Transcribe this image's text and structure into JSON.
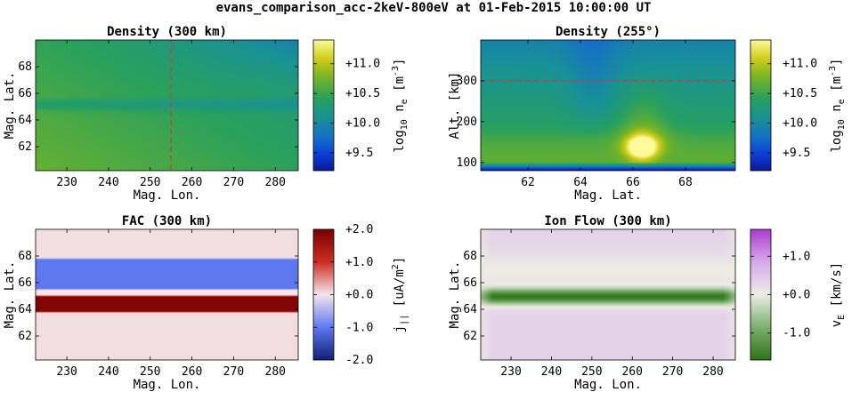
{
  "figure": {
    "title": "evans_comparison_acc-2keV-800eV at 01-Feb-2015 10:00:00 UT"
  },
  "chart_data": [
    {
      "type": "heatmap",
      "title": "Density (300 km)",
      "xlabel": "Mag. Lon.",
      "ylabel": "Mag. Lat.",
      "xlim": [
        222.5,
        285.5
      ],
      "ylim": [
        60.2,
        70.0
      ],
      "xticks": [
        230,
        240,
        250,
        260,
        270,
        280
      ],
      "xtick_labels": [
        "230",
        "240",
        "250",
        "260",
        "270",
        "280"
      ],
      "yticks": [
        62,
        64,
        66,
        68
      ],
      "ytick_labels": [
        "62",
        "64",
        "66",
        "68"
      ],
      "reference_line": {
        "orientation": "vertical",
        "value": 255,
        "color": "#e0322d",
        "style": "dashed"
      },
      "colormap": "parula",
      "colorbar": {
        "label": "log10 n_e [m^-3]",
        "range": [
          9.2,
          11.4
        ],
        "ticks": [
          9.5,
          10.0,
          10.5,
          11.0
        ],
        "tick_labels": [
          "+9.5",
          "+10.0",
          "+10.5",
          "+11.0"
        ]
      },
      "field_notes": "Green field ~10.3-10.6 increasing toward south-west, low band ~10.1 at lat 64.9-65.4, darker teal near top-right ~10.0"
    },
    {
      "type": "heatmap",
      "title": "Density (255°)",
      "xlabel": "Mag. Lat.",
      "ylabel": "Alt. [km]",
      "xlim": [
        60.2,
        69.9
      ],
      "ylim": [
        80,
        400
      ],
      "xticks": [
        62,
        64,
        66,
        68
      ],
      "xtick_labels": [
        "62",
        "64",
        "66",
        "68"
      ],
      "yticks": [
        100,
        200,
        300
      ],
      "ytick_labels": [
        "100",
        "200",
        "300"
      ],
      "reference_line": {
        "orientation": "horizontal",
        "value": 300,
        "color": "#e0322d",
        "style": "dashed"
      },
      "colormap": "parula",
      "colorbar": {
        "label": "log10 n_e [m^-3]",
        "range": [
          9.2,
          11.4
        ],
        "ticks": [
          9.5,
          10.0,
          10.5,
          11.0
        ],
        "tick_labels": [
          "+9.5",
          "+10.0",
          "+10.5",
          "+11.0"
        ]
      },
      "field_notes": "Peak ~11.4 near lat 66.2 alt 130 km; enhancement column lat 65.5-67.5; dark blue below ~95 km; ~10.0 above 300 km"
    },
    {
      "type": "heatmap",
      "title": "FAC (300 km)",
      "xlabel": "Mag. Lon.",
      "ylabel": "Mag. Lat.",
      "xlim": [
        222.5,
        285.5
      ],
      "ylim": [
        60.2,
        70.0
      ],
      "xticks": [
        230,
        240,
        250,
        260,
        270,
        280
      ],
      "xtick_labels": [
        "230",
        "240",
        "250",
        "260",
        "270",
        "280"
      ],
      "yticks": [
        62,
        64,
        66,
        68
      ],
      "ytick_labels": [
        "62",
        "64",
        "66",
        "68"
      ],
      "colormap": "diverging-blue-white-red",
      "colorbar": {
        "label": "j|| [uA/m^2]",
        "range": [
          -2.0,
          2.0
        ],
        "ticks": [
          -2.0,
          -1.0,
          0.0,
          1.0,
          2.0
        ],
        "tick_labels": [
          "-2.0",
          "-1.0",
          "+0.0",
          "+1.0",
          "+2.0"
        ]
      },
      "bands": [
        {
          "lat_range": [
            60.2,
            63.8
          ],
          "value": 0.05
        },
        {
          "lat_range": [
            63.8,
            65.0
          ],
          "value": 1.9
        },
        {
          "lat_range": [
            65.0,
            65.5
          ],
          "value": 0.0
        },
        {
          "lat_range": [
            65.5,
            67.8
          ],
          "value": -1.0
        },
        {
          "lat_range": [
            67.8,
            70.0
          ],
          "value": 0.05
        }
      ]
    },
    {
      "type": "heatmap",
      "title": "Ion Flow (300 km)",
      "xlabel": "Mag. Lon.",
      "ylabel": "Mag. Lat.",
      "xlim": [
        222.5,
        285.5
      ],
      "ylim": [
        60.2,
        70.0
      ],
      "xticks": [
        230,
        240,
        250,
        260,
        270,
        280
      ],
      "xtick_labels": [
        "230",
        "240",
        "250",
        "260",
        "270",
        "280"
      ],
      "yticks": [
        62,
        64,
        66,
        68
      ],
      "ytick_labels": [
        "62",
        "64",
        "66",
        "68"
      ],
      "colormap": "diverging-green-white-purple",
      "colorbar": {
        "label": "v_E [km/s]",
        "range": [
          -1.7,
          1.7
        ],
        "ticks": [
          -1.0,
          0.0,
          1.0
        ],
        "tick_labels": [
          "-1.0",
          "+0.0",
          "+1.0"
        ]
      },
      "field_notes": "Light purple ~0.3 background, near 0 around lat 66-67.5, strong negative ~-1.5 band centred at lat 64.9, fading at lon edges"
    }
  ]
}
